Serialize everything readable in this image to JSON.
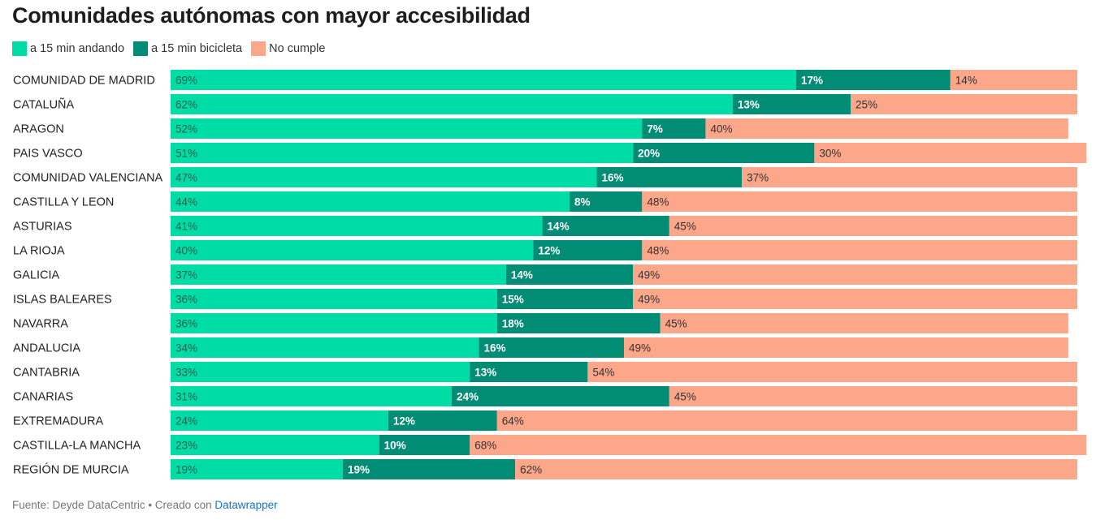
{
  "title": "Comunidades autónomas con mayor accesibilidad",
  "colors": {
    "walk": "#00dca5",
    "bike": "#008c75",
    "none": "#fca68a"
  },
  "legend": [
    {
      "label": "a 15 min andando",
      "color": "#00dca5"
    },
    {
      "label": "a 15 min bicicleta",
      "color": "#008c75"
    },
    {
      "label": "No cumple",
      "color": "#fca68a"
    }
  ],
  "footer": {
    "text": "Fuente: Deyde DataCentric • Creado con ",
    "link": "Datawrapper"
  },
  "chart_data": {
    "type": "bar",
    "orientation": "horizontal",
    "stacked": true,
    "title": "Comunidades autónomas con mayor accesibilidad",
    "unit": "%",
    "categories": [
      "COMUNIDAD DE MADRID",
      "CATALUÑA",
      "ARAGON",
      "PAIS VASCO",
      "COMUNIDAD VALENCIANA",
      "CASTILLA Y LEON",
      "ASTURIAS",
      "LA RIOJA",
      "GALICIA",
      "ISLAS BALEARES",
      "NAVARRA",
      "ANDALUCIA",
      "CANTABRIA",
      "CANARIAS",
      "EXTREMADURA",
      "CASTILLA-LA MANCHA",
      "REGIÓN DE MURCIA"
    ],
    "series": [
      {
        "name": "a 15 min andando",
        "values": [
          69,
          62,
          52,
          51,
          47,
          44,
          41,
          40,
          37,
          36,
          36,
          34,
          33,
          31,
          24,
          23,
          19
        ]
      },
      {
        "name": "a 15 min bicicleta",
        "values": [
          17,
          13,
          7,
          20,
          16,
          8,
          14,
          12,
          14,
          15,
          18,
          16,
          13,
          24,
          12,
          10,
          19
        ]
      },
      {
        "name": "No cumple",
        "values": [
          14,
          25,
          40,
          30,
          37,
          48,
          45,
          48,
          49,
          49,
          45,
          49,
          54,
          45,
          64,
          68,
          62
        ]
      }
    ]
  }
}
